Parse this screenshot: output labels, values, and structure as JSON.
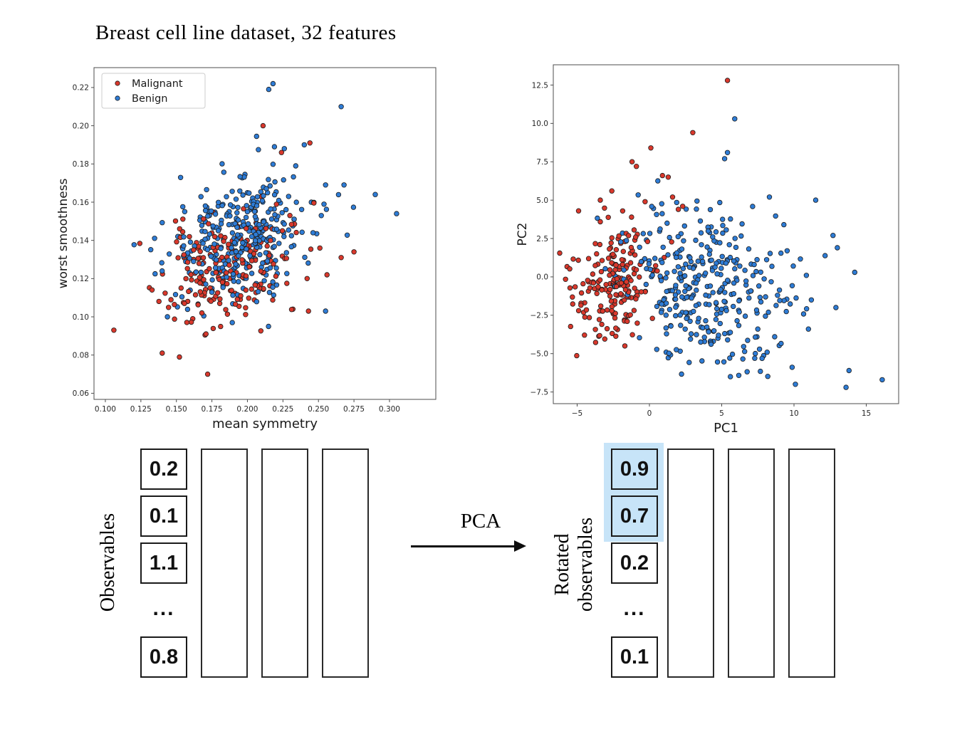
{
  "title": "Breast cell line dataset, 32 features",
  "chart_data": [
    {
      "type": "scatter",
      "title": "",
      "xlabel": "mean symmetry",
      "ylabel": "worst smoothness",
      "xlim": [
        0.092,
        0.3326
      ],
      "ylim": [
        0.0568,
        0.2304
      ],
      "clip": [
        0.096,
        0.329,
        0.0605,
        0.2285
      ],
      "xticks": [
        0.1,
        0.125,
        0.15,
        0.175,
        0.2,
        0.225,
        0.25,
        0.275,
        0.3
      ],
      "xtick_labels": [
        "0.100",
        "0.125",
        "0.150",
        "0.175",
        "0.200",
        "0.225",
        "0.250",
        "0.275",
        "0.300"
      ],
      "yticks": [
        0.06,
        0.08,
        0.1,
        0.12,
        0.14,
        0.16,
        0.18,
        0.2,
        0.22
      ],
      "ytick_labels": [
        "0.06",
        "0.08",
        "0.10",
        "0.12",
        "0.14",
        "0.16",
        "0.18",
        "0.20",
        "0.22"
      ],
      "grid": false,
      "legend": {
        "position": "upper left",
        "entries": [
          "Malignant",
          "Benign"
        ]
      },
      "shuffle_seed": 5,
      "series": [
        {
          "name": "Malignant",
          "color": "#d9382c",
          "n_total": 212,
          "points": [
            [
              0.211,
              0.2
            ],
            [
              0.244,
              0.191
            ],
            [
              0.224,
              0.186
            ],
            [
              0.172,
              0.07
            ],
            [
              0.106,
              0.093
            ],
            [
              0.266,
              0.131
            ],
            [
              0.232,
              0.104
            ],
            [
              0.243,
              0.103
            ],
            [
              0.14,
              0.081
            ],
            [
              0.251,
              0.136
            ],
            [
              0.275,
              0.134
            ],
            [
              0.256,
              0.122
            ]
          ],
          "clusters": [
            {
              "n": 200,
              "cx": 0.183,
              "cy": 0.124,
              "sx": 0.022,
              "sy": 0.0145,
              "rho": 0.25,
              "seed": 11
            }
          ]
        },
        {
          "name": "Benign",
          "color": "#2e7cd6",
          "n_total": 357,
          "points": [
            [
              0.218,
              0.222
            ],
            [
              0.215,
              0.219
            ],
            [
              0.266,
              0.21
            ],
            [
              0.219,
              0.189
            ],
            [
              0.226,
              0.188
            ],
            [
              0.305,
              0.154
            ],
            [
              0.29,
              0.164
            ],
            [
              0.255,
              0.169
            ],
            [
              0.268,
              0.169
            ],
            [
              0.24,
              0.19
            ],
            [
              0.234,
              0.179
            ],
            [
              0.245,
              0.16
            ],
            [
              0.252,
              0.153
            ],
            [
              0.229,
              0.163
            ],
            [
              0.255,
              0.103
            ]
          ],
          "clusters": [
            {
              "n": 342,
              "cx": 0.195,
              "cy": 0.142,
              "sx": 0.024,
              "sy": 0.016,
              "rho": 0.3,
              "seed": 22
            }
          ]
        }
      ]
    },
    {
      "type": "scatter",
      "title": "",
      "xlabel": "PC1",
      "ylabel": "PC2",
      "xlim": [
        -6.65,
        17.24
      ],
      "ylim": [
        -8.26,
        13.82
      ],
      "clip": [
        -6.3,
        17.0,
        -8.0,
        13.5
      ],
      "xticks": [
        -5,
        0,
        5,
        10,
        15
      ],
      "xtick_labels": [
        "−5",
        "0",
        "5",
        "10",
        "15"
      ],
      "yticks": [
        -7.5,
        -5.0,
        -2.5,
        0.0,
        2.5,
        5.0,
        7.5,
        10.0,
        12.5
      ],
      "ytick_labels": [
        "−7.5",
        "−5.0",
        "−2.5",
        "0.0",
        "2.5",
        "5.0",
        "7.5",
        "10.0",
        "12.5"
      ],
      "grid": false,
      "legend": null,
      "shuffle_seed": 9,
      "series": [
        {
          "name": "Malignant",
          "color": "#d9382c",
          "n_total": 212,
          "points": [
            [
              5.4,
              12.8
            ],
            [
              3.0,
              9.4
            ],
            [
              0.1,
              8.4
            ],
            [
              -1.2,
              7.5
            ],
            [
              -0.9,
              7.2
            ],
            [
              0.9,
              6.6
            ],
            [
              1.3,
              6.5
            ],
            [
              -2.6,
              5.6
            ],
            [
              -0.3,
              4.9
            ],
            [
              -4.9,
              4.3
            ],
            [
              2.3,
              4.6
            ],
            [
              2.0,
              4.4
            ],
            [
              -1.7,
              -4.5
            ],
            [
              -3.4,
              5.0
            ],
            [
              1.6,
              5.2
            ]
          ],
          "clusters": [
            {
              "n": 197,
              "cx": -2.5,
              "cy": -0.4,
              "sx": 1.45,
              "sy": 1.9,
              "rho": 0.1,
              "seed": 33
            }
          ]
        },
        {
          "name": "Benign",
          "color": "#2e7cd6",
          "n_total": 357,
          "points": [
            [
              5.9,
              10.3
            ],
            [
              5.4,
              8.1
            ],
            [
              5.2,
              7.7
            ],
            [
              11.5,
              5.0
            ],
            [
              12.7,
              2.7
            ],
            [
              16.1,
              -6.7
            ],
            [
              13.6,
              -7.2
            ],
            [
              10.1,
              -7.0
            ],
            [
              5.6,
              -6.5
            ],
            [
              9.3,
              3.4
            ],
            [
              13.0,
              1.9
            ],
            [
              11.0,
              -3.4
            ],
            [
              12.9,
              -2.0
            ],
            [
              11.2,
              -1.5
            ],
            [
              8.3,
              5.2
            ],
            [
              14.2,
              0.3
            ]
          ],
          "clusters": [
            {
              "n": 341,
              "cx": 4.0,
              "cy": -1.0,
              "sx": 3.0,
              "sy": 2.5,
              "rho": -0.2,
              "seed": 44
            }
          ]
        }
      ]
    }
  ],
  "legend": {
    "malignant": "Malignant",
    "benign": "Benign"
  },
  "colors": {
    "malignant": "#d9382c",
    "benign": "#2e7cd6",
    "highlight": "#c7e4f8",
    "marker_edge": "#1c1c1c",
    "spine": "#4d4d4d",
    "text": "#262626"
  },
  "diagram": {
    "left_label": "Observables",
    "left_values": [
      "0.2",
      "0.1",
      "1.1",
      "...",
      "0.8"
    ],
    "arrow_label": "PCA",
    "right_label": [
      "Rotated",
      "observables"
    ],
    "right_values": [
      "0.9",
      "0.7",
      "0.2",
      "...",
      "0.1"
    ],
    "right_highlight_rows": [
      0,
      1
    ],
    "empty_columns_per_side": 3
  }
}
